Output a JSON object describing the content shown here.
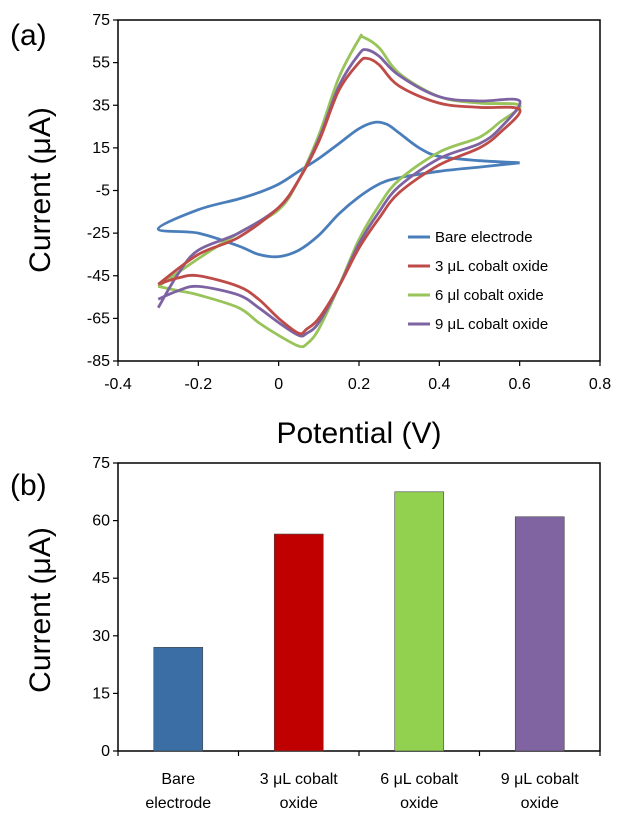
{
  "chart_data": [
    {
      "panel_label": "(a)",
      "type": "line",
      "title": "",
      "xlabel": "Potential (V)",
      "ylabel": "Current (μA)",
      "xlim": [
        -0.4,
        0.8
      ],
      "ylim": [
        -85,
        75
      ],
      "x_ticks": [
        -0.4,
        -0.2,
        0,
        0.2,
        0.4,
        0.6,
        0.8
      ],
      "x_tick_labels": [
        "-0.4",
        "-0.2",
        "0",
        "0.2",
        "0.4",
        "0.6",
        "0.8"
      ],
      "y_ticks": [
        -85,
        -65,
        -45,
        -25,
        -5,
        15,
        35,
        55,
        75
      ],
      "y_tick_labels": [
        "-85",
        "-65",
        "-45",
        "-25",
        "-5",
        "15",
        "35",
        "55",
        "75"
      ],
      "grid": false,
      "legend_position": "bottom-right",
      "series": [
        {
          "name": "Bare electrode",
          "color": "#4a7ebb",
          "points": [
            [
              0.6,
              8
            ],
            [
              0.5,
              9
            ],
            [
              0.4,
              11
            ],
            [
              0.35,
              15
            ],
            [
              0.3,
              22
            ],
            [
              0.27,
              26
            ],
            [
              0.24,
              27
            ],
            [
              0.2,
              24
            ],
            [
              0.15,
              17
            ],
            [
              0.1,
              10
            ],
            [
              0.05,
              4
            ],
            [
              0.0,
              -2
            ],
            [
              -0.05,
              -6
            ],
            [
              -0.1,
              -9
            ],
            [
              -0.2,
              -14
            ],
            [
              -0.3,
              -23
            ],
            [
              -0.2,
              -25
            ],
            [
              -0.1,
              -31
            ],
            [
              -0.05,
              -35
            ],
            [
              0.0,
              -36
            ],
            [
              0.05,
              -33
            ],
            [
              0.1,
              -26
            ],
            [
              0.15,
              -16
            ],
            [
              0.2,
              -8
            ],
            [
              0.25,
              -2
            ],
            [
              0.3,
              1
            ],
            [
              0.4,
              4
            ],
            [
              0.5,
              6
            ],
            [
              0.6,
              8
            ]
          ]
        },
        {
          "name": "3 μL cobalt oxide",
          "color": "#be4b48",
          "points": [
            [
              -0.3,
              -49
            ],
            [
              -0.2,
              -35
            ],
            [
              -0.1,
              -27
            ],
            [
              0.0,
              -13
            ],
            [
              0.05,
              0
            ],
            [
              0.1,
              18
            ],
            [
              0.15,
              42
            ],
            [
              0.2,
              55
            ],
            [
              0.22,
              57
            ],
            [
              0.25,
              54
            ],
            [
              0.3,
              44
            ],
            [
              0.4,
              36
            ],
            [
              0.5,
              34
            ],
            [
              0.6,
              33
            ],
            [
              0.55,
              22
            ],
            [
              0.5,
              15
            ],
            [
              0.4,
              7
            ],
            [
              0.3,
              -6
            ],
            [
              0.25,
              -18
            ],
            [
              0.2,
              -32
            ],
            [
              0.15,
              -50
            ],
            [
              0.1,
              -65
            ],
            [
              0.07,
              -70
            ],
            [
              0.05,
              -72
            ],
            [
              0.0,
              -65
            ],
            [
              -0.05,
              -56
            ],
            [
              -0.1,
              -50
            ],
            [
              -0.2,
              -45
            ],
            [
              -0.25,
              -46
            ],
            [
              -0.3,
              -49
            ]
          ]
        },
        {
          "name": "6 μl cobalt oxide",
          "color": "#98c45a",
          "points": [
            [
              -0.3,
              -50
            ],
            [
              -0.2,
              -37
            ],
            [
              -0.1,
              -25
            ],
            [
              0.0,
              -14
            ],
            [
              0.05,
              0
            ],
            [
              0.1,
              21
            ],
            [
              0.15,
              48
            ],
            [
              0.2,
              66
            ],
            [
              0.21,
              67
            ],
            [
              0.25,
              62
            ],
            [
              0.3,
              50
            ],
            [
              0.4,
              39
            ],
            [
              0.5,
              36
            ],
            [
              0.6,
              35
            ],
            [
              0.55,
              27
            ],
            [
              0.5,
              20
            ],
            [
              0.4,
              13
            ],
            [
              0.3,
              0
            ],
            [
              0.25,
              -12
            ],
            [
              0.2,
              -28
            ],
            [
              0.15,
              -50
            ],
            [
              0.1,
              -70
            ],
            [
              0.07,
              -77
            ],
            [
              0.05,
              -78
            ],
            [
              0.0,
              -73
            ],
            [
              -0.05,
              -67
            ],
            [
              -0.1,
              -60
            ],
            [
              -0.2,
              -54
            ],
            [
              -0.25,
              -52
            ],
            [
              -0.3,
              -50
            ]
          ]
        },
        {
          "name": "9 μL cobalt oxide",
          "color": "#7e63a3",
          "points": [
            [
              -0.3,
              -60
            ],
            [
              -0.25,
              -44
            ],
            [
              -0.2,
              -33
            ],
            [
              -0.1,
              -25
            ],
            [
              0.0,
              -13
            ],
            [
              0.05,
              0
            ],
            [
              0.1,
              19
            ],
            [
              0.15,
              44
            ],
            [
              0.2,
              59
            ],
            [
              0.22,
              61
            ],
            [
              0.25,
              58
            ],
            [
              0.3,
              49
            ],
            [
              0.4,
              39
            ],
            [
              0.5,
              37
            ],
            [
              0.6,
              37
            ],
            [
              0.55,
              24
            ],
            [
              0.5,
              17
            ],
            [
              0.4,
              10
            ],
            [
              0.3,
              -3
            ],
            [
              0.25,
              -15
            ],
            [
              0.2,
              -30
            ],
            [
              0.15,
              -50
            ],
            [
              0.1,
              -67
            ],
            [
              0.07,
              -72
            ],
            [
              0.05,
              -73
            ],
            [
              0.0,
              -67
            ],
            [
              -0.05,
              -60
            ],
            [
              -0.1,
              -54
            ],
            [
              -0.2,
              -50
            ],
            [
              -0.25,
              -52
            ],
            [
              -0.3,
              -56
            ]
          ]
        }
      ]
    },
    {
      "panel_label": "(b)",
      "type": "bar",
      "title": "",
      "xlabel": "",
      "ylabel": "Current (μA)",
      "ylim": [
        0,
        75
      ],
      "y_ticks": [
        0,
        15,
        30,
        45,
        60,
        75
      ],
      "y_tick_labels": [
        "0",
        "15",
        "30",
        "45",
        "60",
        "75"
      ],
      "grid": false,
      "categories": [
        [
          "Bare",
          "electrode"
        ],
        [
          "3 μL cobalt",
          "oxide"
        ],
        [
          "6 μL cobalt",
          "oxide"
        ],
        [
          "9 μL cobalt",
          "oxide"
        ]
      ],
      "values": [
        27,
        56.5,
        67.5,
        61
      ],
      "colors": [
        "#3a6ea5",
        "#c00000",
        "#92d050",
        "#8064a2"
      ]
    }
  ]
}
